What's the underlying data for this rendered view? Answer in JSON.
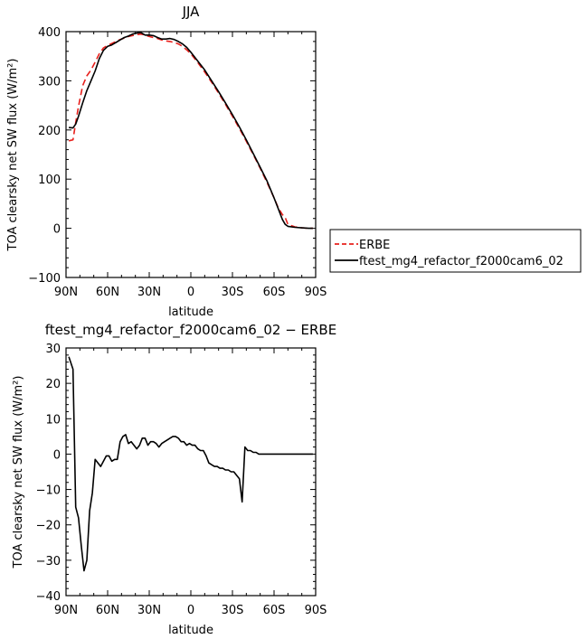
{
  "chart_data": [
    {
      "type": "line",
      "title": "JJA",
      "xlabel": "latitude",
      "ylabel": "TOA clearsky net SW flux (W/m²)",
      "xlim": [
        90,
        -90
      ],
      "ylim": [
        -100,
        400
      ],
      "xticks": [
        90,
        60,
        30,
        0,
        -30,
        -60,
        -90
      ],
      "xtick_labels": [
        "90N",
        "60N",
        "30N",
        "0",
        "30S",
        "60S",
        "90S"
      ],
      "yticks": [
        -100,
        0,
        100,
        200,
        300,
        400
      ],
      "ytick_labels": [
        "−100",
        "0",
        "100",
        "200",
        "300",
        "400"
      ],
      "legend": "right",
      "series": [
        {
          "name": "ERBE",
          "color": "#e8201c",
          "dash": "dashed",
          "x": [
            88,
            85,
            83,
            81,
            78,
            75,
            72,
            69,
            66,
            63,
            60,
            57,
            54,
            51,
            48,
            45,
            42,
            39,
            36,
            33,
            30,
            27,
            24,
            21,
            18,
            15,
            12,
            9,
            6,
            3,
            0,
            -5,
            -10,
            -15,
            -20,
            -25,
            -30,
            -35,
            -40,
            -45,
            -50,
            -55,
            -60,
            -63,
            -66,
            -68,
            -70,
            -75,
            -80,
            -85,
            -88
          ],
          "y": [
            178,
            180,
            215,
            248,
            290,
            310,
            322,
            338,
            355,
            367,
            372,
            376,
            380,
            384,
            387,
            390,
            392,
            394,
            395,
            393,
            390,
            388,
            386,
            383,
            381,
            380,
            378,
            375,
            370,
            363,
            355,
            337,
            318,
            297,
            275,
            252,
            228,
            203,
            177,
            150,
            122,
            93,
            62,
            42,
            28,
            22,
            8,
            3,
            1,
            0,
            0
          ]
        },
        {
          "name": "ftest_mg4_refactor_f2000cam6_02",
          "color": "#000000",
          "dash": "solid",
          "x": [
            88,
            85,
            83,
            81,
            78,
            75,
            72,
            69,
            66,
            63,
            60,
            57,
            54,
            51,
            48,
            45,
            42,
            39,
            36,
            33,
            30,
            27,
            24,
            21,
            18,
            15,
            12,
            9,
            6,
            3,
            0,
            -5,
            -10,
            -15,
            -20,
            -25,
            -30,
            -35,
            -40,
            -45,
            -50,
            -55,
            -60,
            -63,
            -66,
            -68,
            -70,
            -75,
            -80,
            -85,
            -88
          ],
          "y": [
            205,
            204,
            212,
            228,
            255,
            280,
            300,
            320,
            345,
            362,
            370,
            373,
            378,
            383,
            388,
            391,
            395,
            397,
            398,
            393,
            393,
            392,
            388,
            385,
            385,
            386,
            384,
            380,
            375,
            368,
            358,
            340,
            322,
            300,
            278,
            255,
            231,
            206,
            180,
            152,
            124,
            96,
            62,
            40,
            18,
            8,
            4,
            2,
            1,
            0,
            0
          ]
        }
      ]
    },
    {
      "type": "line",
      "title": "ftest_mg4_refactor_f2000cam6_02 − ERBE",
      "xlabel": "latitude",
      "ylabel": "TOA clearsky net SW flux (W/m²)",
      "xlim": [
        90,
        -90
      ],
      "ylim": [
        -40,
        30
      ],
      "xticks": [
        90,
        60,
        30,
        0,
        -30,
        -60,
        -90
      ],
      "xtick_labels": [
        "90N",
        "60N",
        "30N",
        "0",
        "30S",
        "60S",
        "90S"
      ],
      "yticks": [
        -40,
        -30,
        -20,
        -10,
        0,
        10,
        20,
        30
      ],
      "ytick_labels": [
        "−40",
        "−30",
        "−20",
        "−10",
        "0",
        "10",
        "20",
        "30"
      ],
      "series": [
        {
          "color": "#000000",
          "dash": "solid",
          "x": [
            88,
            85,
            83,
            81,
            79,
            77,
            75,
            73,
            71,
            69,
            67,
            65,
            63,
            61,
            59,
            57,
            55,
            53,
            51,
            49,
            47,
            45,
            43,
            41,
            39,
            37,
            35,
            33,
            31,
            29,
            27,
            25,
            23,
            21,
            19,
            17,
            15,
            13,
            11,
            9,
            7,
            5,
            3,
            1,
            -1,
            -3,
            -5,
            -7,
            -9,
            -11,
            -13,
            -15,
            -17,
            -19,
            -21,
            -23,
            -25,
            -27,
            -29,
            -31,
            -33,
            -35,
            -37,
            -39,
            -41,
            -43,
            -45,
            -47,
            -49,
            -51,
            -53,
            -55,
            -57,
            -59,
            -61,
            -63,
            -65,
            -67,
            -69,
            -71,
            -73,
            -75,
            -77,
            -79,
            -81,
            -83,
            -85,
            -88
          ],
          "y": [
            27.5,
            24,
            -15,
            -18,
            -26,
            -33,
            -30,
            -16,
            -11,
            -1.5,
            -2.5,
            -3.5,
            -2,
            -0.5,
            -0.5,
            -2,
            -1.5,
            -1.5,
            3.5,
            5,
            5.5,
            3,
            3.5,
            2.5,
            1.5,
            2.5,
            4.5,
            4.5,
            2.5,
            3.5,
            3.5,
            3,
            2,
            3,
            3.5,
            4,
            4.5,
            5,
            5,
            4.5,
            3.5,
            3.5,
            2.5,
            3,
            2.5,
            2.5,
            1.5,
            1,
            1,
            -0.5,
            -2.5,
            -3,
            -3.5,
            -3.5,
            -4,
            -4,
            -4.5,
            -4.5,
            -5,
            -5,
            -6,
            -7,
            -13.5,
            2,
            1,
            1,
            0.5,
            0.5,
            0,
            0,
            0,
            0,
            0,
            0,
            0,
            0,
            0,
            0,
            0,
            0,
            0,
            0,
            0,
            0,
            0,
            0,
            0,
            0
          ]
        }
      ]
    }
  ]
}
